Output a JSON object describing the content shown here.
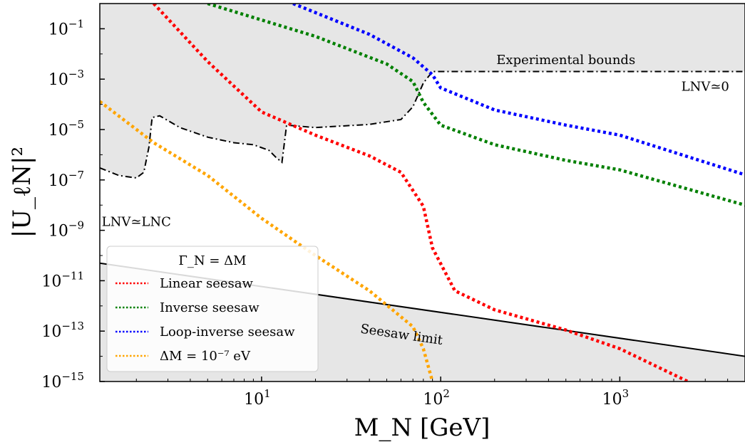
{
  "chart_data": {
    "type": "line",
    "title": "",
    "xlabel": "M_N [GeV]",
    "ylabel": "|U_ℓN|²",
    "xscale": "log",
    "yscale": "log",
    "xlim": [
      1.25,
      5000
    ],
    "ylim": [
      1e-15,
      1
    ],
    "grid": false,
    "x_ticks": [
      {
        "value": 10,
        "label": "10",
        "exp": "1"
      },
      {
        "value": 100,
        "label": "10",
        "exp": "2"
      },
      {
        "value": 1000,
        "label": "10",
        "exp": "3"
      }
    ],
    "y_ticks": [
      {
        "value": 0.1,
        "label": "10",
        "exp": "−1"
      },
      {
        "value": 0.001,
        "label": "10",
        "exp": "−3"
      },
      {
        "value": 1e-05,
        "label": "10",
        "exp": "−5"
      },
      {
        "value": 1e-07,
        "label": "10",
        "exp": "−7"
      },
      {
        "value": 1e-09,
        "label": "10",
        "exp": "−9"
      },
      {
        "value": 1e-11,
        "label": "10",
        "exp": "−11"
      },
      {
        "value": 1e-13,
        "label": "10",
        "exp": "−13"
      },
      {
        "value": 1e-15,
        "label": "10",
        "exp": "−15"
      }
    ],
    "legend": {
      "title": "Γ_N = ΔM",
      "placement": "lower-left",
      "entries": [
        {
          "label": "Linear seesaw",
          "series": 0
        },
        {
          "label": "Inverse seesaw",
          "series": 1
        },
        {
          "label": "Loop-inverse seesaw",
          "series": 2
        },
        {
          "label": "ΔM = 10⁻⁷ eV",
          "series": 3
        }
      ]
    },
    "series": [
      {
        "name": "Linear seesaw",
        "color": "#ff0000",
        "style": "dotted",
        "points": [
          [
            2.5,
            1
          ],
          [
            5,
            0.005
          ],
          [
            10,
            5e-05
          ],
          [
            20,
            6e-06
          ],
          [
            40,
            9e-07
          ],
          [
            60,
            2e-07
          ],
          [
            80,
            9e-09
          ],
          [
            90,
            2e-10
          ],
          [
            120,
            4e-12
          ],
          [
            200,
            7e-13
          ],
          [
            500,
            1.1e-13
          ],
          [
            1000,
            2e-14
          ],
          [
            2400,
            1e-15
          ]
        ]
      },
      {
        "name": "Inverse seesaw",
        "color": "#008000",
        "style": "dotted",
        "points": [
          [
            5,
            1
          ],
          [
            20,
            0.05
          ],
          [
            50,
            0.004
          ],
          [
            70,
            0.0008
          ],
          [
            80,
            0.00012
          ],
          [
            100,
            1.5e-05
          ],
          [
            200,
            2.5e-06
          ],
          [
            500,
            6e-07
          ],
          [
            1000,
            2.5e-07
          ],
          [
            5000,
            1e-08
          ]
        ]
      },
      {
        "name": "Loop-inverse seesaw",
        "color": "#0000ff",
        "style": "dotted",
        "points": [
          [
            15,
            1
          ],
          [
            40,
            0.06
          ],
          [
            70,
            0.007
          ],
          [
            90,
            0.0015
          ],
          [
            100,
            0.00045
          ],
          [
            200,
            6e-05
          ],
          [
            500,
            1.5e-05
          ],
          [
            1000,
            6e-06
          ],
          [
            5000,
            1.6e-07
          ]
        ]
      },
      {
        "name": "ΔM = 10⁻⁷ eV",
        "color": "#ffa500",
        "style": "dotted",
        "points": [
          [
            1.25,
            0.00013
          ],
          [
            2.5,
            3e-06
          ],
          [
            5,
            1.5e-07
          ],
          [
            10,
            3e-09
          ],
          [
            20,
            1e-10
          ],
          [
            40,
            4e-12
          ],
          [
            70,
            1.5e-13
          ],
          [
            80,
            2e-14
          ],
          [
            90,
            1e-15
          ]
        ]
      }
    ],
    "reference_lines": [
      {
        "name": "Experimental bounds",
        "color": "#000000",
        "style": "dash-dot",
        "points": [
          [
            1.25,
            3e-07
          ],
          [
            1.6,
            1.5e-07
          ],
          [
            2.0,
            1.2e-07
          ],
          [
            2.2,
            2e-07
          ],
          [
            2.35,
            2e-06
          ],
          [
            2.45,
            3e-05
          ],
          [
            2.7,
            3.5e-05
          ],
          [
            3.5,
            1.2e-05
          ],
          [
            5,
            5e-06
          ],
          [
            7,
            3e-06
          ],
          [
            9,
            2.5e-06
          ],
          [
            11,
            1.5e-06
          ],
          [
            12,
            8e-07
          ],
          [
            13,
            5e-07
          ],
          [
            13.8,
            1.5e-05
          ],
          [
            20,
            1.2e-05
          ],
          [
            40,
            1.6e-05
          ],
          [
            60,
            2.5e-05
          ],
          [
            70,
            8e-05
          ],
          [
            80,
            0.0007
          ],
          [
            90,
            0.002
          ],
          [
            100,
            0.002
          ],
          [
            5000,
            0.002
          ]
        ]
      },
      {
        "name": "Seesaw limit",
        "color": "#000000",
        "style": "solid",
        "points": [
          [
            1.25,
            5e-11
          ],
          [
            5000,
            1e-14
          ]
        ]
      }
    ],
    "excluded_regions": [
      {
        "description": "above experimental bounds",
        "color": "#e6e6e6"
      },
      {
        "description": "below seesaw limit",
        "color": "#e6e6e6"
      }
    ],
    "annotations": [
      {
        "text": "Experimental bounds",
        "x": 500,
        "y": 0.004
      },
      {
        "text": "LNV≃0",
        "x": 3000,
        "y": 0.00035
      },
      {
        "text": "LNV≃LNC",
        "x": 2.0,
        "y": 1.5e-09
      },
      {
        "text": "Seesaw limit",
        "x": 60,
        "y": 5e-14,
        "rotation": "along seesaw limit"
      }
    ]
  }
}
